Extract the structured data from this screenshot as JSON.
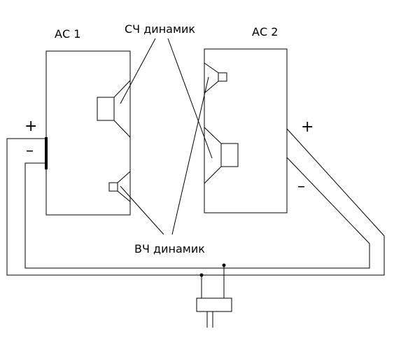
{
  "labels": {
    "speaker1": "АС 1",
    "speaker2": "АС 2",
    "midrange": "СЧ динамик",
    "tweeter": "ВЧ динамик"
  },
  "terminals": {
    "plus_left": "+",
    "minus_left": "–",
    "plus_right": "+",
    "minus_right": "–"
  }
}
